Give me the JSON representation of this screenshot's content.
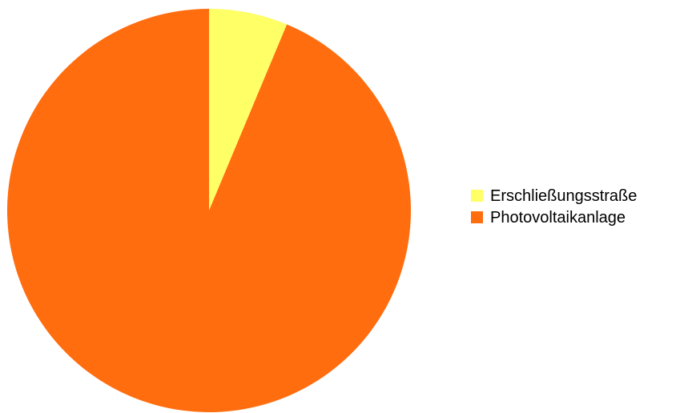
{
  "chart_data": {
    "type": "pie",
    "categories": [
      "Erschließungsstraße",
      "Photovoltaikanlage"
    ],
    "values": [
      6.3,
      93.7
    ],
    "colors": [
      "#FFFF66",
      "#FF6D0F"
    ],
    "legend_position": "right",
    "start_angle": "top",
    "direction": "clockwise"
  },
  "legend": {
    "items": [
      {
        "label": "Erschließungsstraße",
        "color": "#FFFF66"
      },
      {
        "label": "Photovoltaikanlage",
        "color": "#FF6D0F"
      }
    ]
  }
}
